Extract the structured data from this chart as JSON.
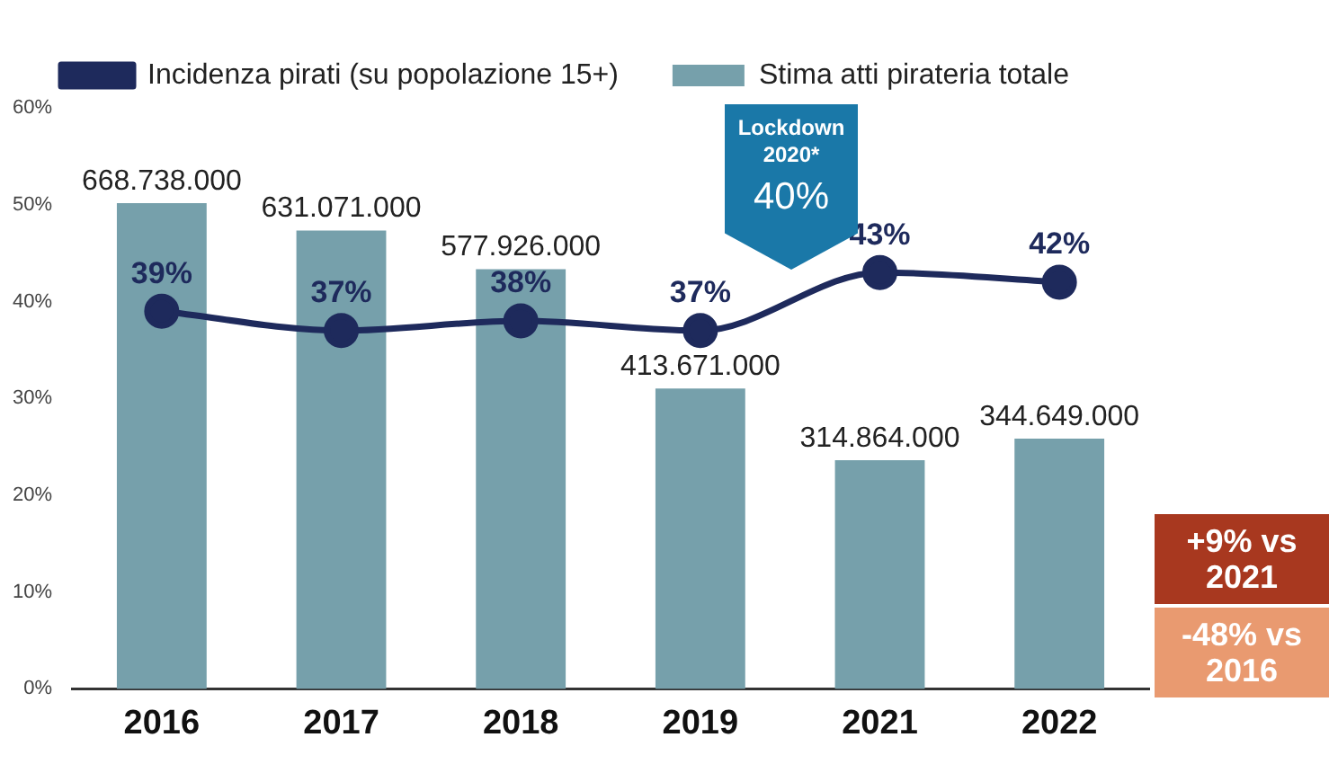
{
  "chart_data": {
    "type": "bar",
    "categories": [
      "2016",
      "2017",
      "2018",
      "2019",
      "2021",
      "2022"
    ],
    "series": [
      {
        "name": "Stima atti pirateria totale",
        "axis": "y2",
        "color": "#76a0ab",
        "values": [
          668738000,
          631071000,
          577926000,
          413671000,
          314864000,
          344649000
        ],
        "value_labels": [
          "668.738.000",
          "631.071.000",
          "577.926.000",
          "413.671.000",
          "314.864.000",
          "344.649.000"
        ]
      },
      {
        "name": "Incidenza pirati (su popolazione 15+)",
        "type": "line",
        "color": "#1e2a5c",
        "values": [
          39,
          37,
          38,
          37,
          43,
          42
        ],
        "value_labels": [
          "39%",
          "37%",
          "38%",
          "37%",
          "43%",
          "42%"
        ]
      }
    ],
    "ylim": [
      0,
      60
    ],
    "yticks": [
      {
        "value": 0,
        "label": "0%"
      },
      {
        "value": 10,
        "label": "10%"
      },
      {
        "value": 20,
        "label": "20%"
      },
      {
        "value": 30,
        "label": "30%"
      },
      {
        "value": 40,
        "label": "40%"
      },
      {
        "value": 50,
        "label": "50%"
      },
      {
        "value": 60,
        "label": "60%"
      }
    ],
    "grid": false,
    "legend": "top",
    "marker": "circle",
    "line_style": "solid",
    "annotations": [
      "Lockdown 2020*",
      "40%",
      "+9% vs 2021",
      "-48% vs 2016"
    ]
  }
}
